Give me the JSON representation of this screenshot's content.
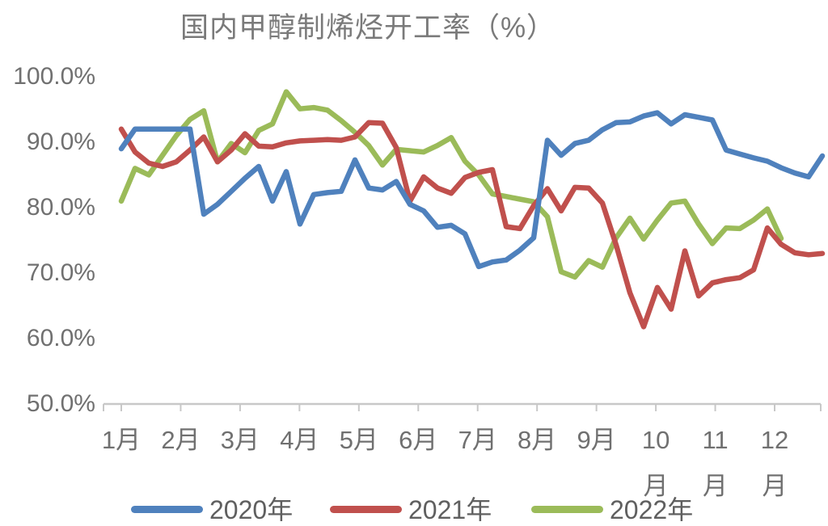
{
  "chart_data": {
    "type": "line",
    "title": "国内甲醇制烯烃开工率（%）",
    "xlabel": "",
    "ylabel": "",
    "y_ticks": [
      "100.0%",
      "90.0%",
      "80.0%",
      "70.0%",
      "60.0%",
      "50.0%"
    ],
    "y_tick_values": [
      100,
      90,
      80,
      70,
      60,
      50
    ],
    "ylim": [
      50,
      100
    ],
    "x_labels": [
      "1月",
      "2月",
      "3月",
      "4月",
      "5月",
      "6月",
      "7月",
      "8月",
      "9月",
      "10月",
      "11月",
      "12月"
    ],
    "x_unit": "week",
    "grid": "off",
    "legend_position": "bottom",
    "series": [
      {
        "name": "2020年",
        "color": "#4F81BD",
        "values": [
          89,
          92,
          92,
          92,
          92,
          92,
          79,
          80.5,
          82.5,
          84.5,
          86.3,
          81,
          85.5,
          77.5,
          82,
          82.3,
          82.5,
          87.3,
          83,
          82.7,
          84,
          80.5,
          79.5,
          77,
          77.3,
          76,
          71,
          71.7,
          72,
          73.5,
          75.4,
          90.3,
          88,
          89.8,
          90.3,
          91.9,
          93,
          93.1,
          94,
          94.5,
          92.8,
          94.2,
          93.8,
          93.4,
          88.8,
          88.2,
          87.6,
          87.1,
          86.1,
          85.3,
          84.7,
          87.9
        ]
      },
      {
        "name": "2021年",
        "color": "#C0504D",
        "values": [
          92,
          88.5,
          86.8,
          86.3,
          87,
          88.8,
          90.8,
          87,
          88.8,
          91.3,
          89.4,
          89.3,
          89.9,
          90.2,
          90.3,
          90.4,
          90.3,
          90.8,
          93,
          92.9,
          89.2,
          81,
          84.7,
          83,
          82.2,
          84.6,
          85.4,
          85.8,
          77.1,
          76.8,
          80.3,
          82.9,
          79.5,
          83.1,
          83,
          80.7,
          74.3,
          67,
          61.8,
          67.8,
          64.5,
          73.4,
          66.5,
          68.5,
          69,
          69.3,
          70.5,
          76.9,
          74.4,
          73.1,
          72.8,
          73
        ]
      },
      {
        "name": "2022年",
        "color": "#9BBB59",
        "values": [
          81,
          86,
          85,
          88,
          91,
          93.5,
          94.8,
          87,
          89.8,
          88.4,
          91.8,
          92.8,
          97.7,
          95.1,
          95.3,
          94.9,
          93.3,
          91.5,
          89.5,
          86.5,
          88.9,
          88.7,
          88.5,
          89.5,
          90.7,
          87.1,
          85,
          82.1,
          81.7,
          81.3,
          80.9,
          78.6,
          70.2,
          69.4,
          71.9,
          70.9,
          75.4,
          78.4,
          75.2,
          78.1,
          80.7,
          81,
          77.5,
          74.5,
          76.9,
          76.8,
          78.1,
          79.8,
          75.3
        ]
      }
    ]
  },
  "style": {
    "axis_line_color": "#c8c8c8",
    "text_color": "#707070",
    "title_color": "#7a7a7a",
    "background": "#ffffff"
  }
}
